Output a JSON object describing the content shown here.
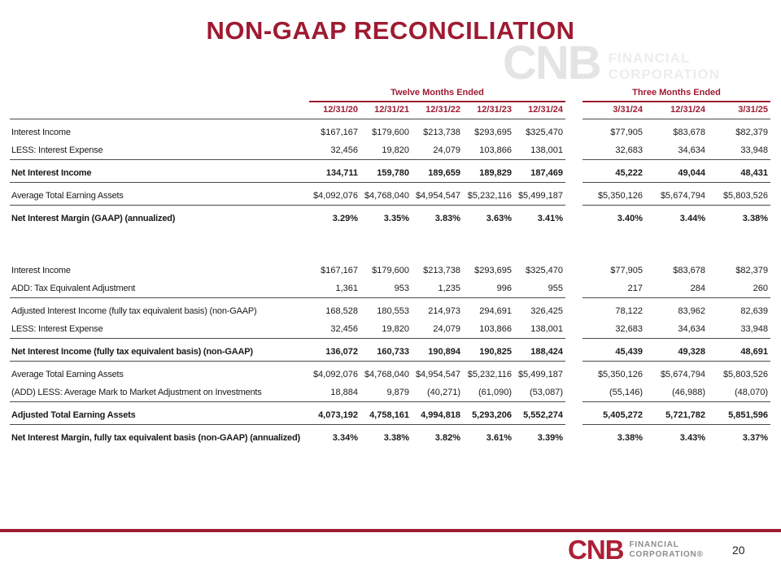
{
  "slide": {
    "title": "NON-GAAP RECONCILIATION",
    "page_number": "20",
    "accent_color": "#9e1b32"
  },
  "watermark": {
    "brand": "CNB",
    "line1": "FINANCIAL",
    "line2": "CORPORATION"
  },
  "footer_logo": {
    "brand": "CNB",
    "line1": "FINANCIAL",
    "line2": "CORPORATION®"
  },
  "table": {
    "groups": [
      {
        "label": "Twelve Months Ended",
        "columns": [
          "12/31/20",
          "12/31/21",
          "12/31/22",
          "12/31/23",
          "12/31/24"
        ]
      },
      {
        "label": "Three Months Ended",
        "columns": [
          "3/31/24",
          "12/31/24",
          "3/31/25"
        ]
      }
    ],
    "rows": [
      {
        "label": "Interest Income",
        "tme": [
          "$167,167",
          "$179,600",
          "$213,738",
          "$293,695",
          "$325,470"
        ],
        "qtr": [
          "$77,905",
          "$83,678",
          "$82,379"
        ],
        "bold": false,
        "rule": false
      },
      {
        "label": "LESS: Interest Expense",
        "tme": [
          "32,456",
          "19,820",
          "24,079",
          "103,866",
          "138,001"
        ],
        "qtr": [
          "32,683",
          "34,634",
          "33,948"
        ],
        "bold": false,
        "rule": true
      },
      {
        "label": "Net Interest Income",
        "tme": [
          "134,711",
          "159,780",
          "189,659",
          "189,829",
          "187,469"
        ],
        "qtr": [
          "45,222",
          "49,044",
          "48,431"
        ],
        "bold": true,
        "rule": true
      },
      {
        "label": "Average Total Earning Assets",
        "tme": [
          "$4,092,076",
          "$4,768,040",
          "$4,954,547",
          "$5,232,116",
          "$5,499,187"
        ],
        "qtr": [
          "$5,350,126",
          "$5,674,794",
          "$5,803,526"
        ],
        "bold": false,
        "rule": true
      },
      {
        "label": "Net Interest Margin (GAAP) (annualized)",
        "tme": [
          "3.29%",
          "3.35%",
          "3.83%",
          "3.63%",
          "3.41%"
        ],
        "qtr": [
          "3.40%",
          "3.44%",
          "3.38%"
        ],
        "bold": true,
        "rule": false
      },
      {
        "spacer": true
      },
      {
        "label": "Interest Income",
        "tme": [
          "$167,167",
          "$179,600",
          "$213,738",
          "$293,695",
          "$325,470"
        ],
        "qtr": [
          "$77,905",
          "$83,678",
          "$82,379"
        ],
        "bold": false,
        "rule": false
      },
      {
        "label": "ADD: Tax Equivalent Adjustment",
        "tme": [
          "1,361",
          "953",
          "1,235",
          "996",
          "955"
        ],
        "qtr": [
          "217",
          "284",
          "260"
        ],
        "bold": false,
        "rule": true
      },
      {
        "label": "Adjusted Interest Income (fully tax equivalent basis) (non-GAAP)",
        "tme": [
          "168,528",
          "180,553",
          "214,973",
          "294,691",
          "326,425"
        ],
        "qtr": [
          "78,122",
          "83,962",
          "82,639"
        ],
        "bold": false,
        "rule": false
      },
      {
        "label": "LESS: Interest Expense",
        "tme": [
          "32,456",
          "19,820",
          "24,079",
          "103,866",
          "138,001"
        ],
        "qtr": [
          "32,683",
          "34,634",
          "33,948"
        ],
        "bold": false,
        "rule": true
      },
      {
        "label": "Net Interest Income (fully tax equivalent basis) (non-GAAP)",
        "tme": [
          "136,072",
          "160,733",
          "190,894",
          "190,825",
          "188,424"
        ],
        "qtr": [
          "45,439",
          "49,328",
          "48,691"
        ],
        "bold": true,
        "rule": true
      },
      {
        "label": "Average Total Earning Assets",
        "tme": [
          "$4,092,076",
          "$4,768,040",
          "$4,954,547",
          "$5,232,116",
          "$5,499,187"
        ],
        "qtr": [
          "$5,350,126",
          "$5,674,794",
          "$5,803,526"
        ],
        "bold": false,
        "rule": false
      },
      {
        "label": "(ADD) LESS: Average Mark to Market Adjustment on Investments",
        "tme": [
          "18,884",
          "9,879",
          "(40,271)",
          "(61,090)",
          "(53,087)"
        ],
        "qtr": [
          "(55,146)",
          "(46,988)",
          "(48,070)"
        ],
        "bold": false,
        "rule": true
      },
      {
        "label": "Adjusted Total Earning Assets",
        "tme": [
          "4,073,192",
          "4,758,161",
          "4,994,818",
          "5,293,206",
          "5,552,274"
        ],
        "qtr": [
          "5,405,272",
          "5,721,782",
          "5,851,596"
        ],
        "bold": true,
        "rule": true
      },
      {
        "label": "Net Interest Margin, fully tax equivalent basis (non-GAAP) (annualized)",
        "tme": [
          "3.34%",
          "3.38%",
          "3.82%",
          "3.61%",
          "3.39%"
        ],
        "qtr": [
          "3.38%",
          "3.43%",
          "3.37%"
        ],
        "bold": true,
        "rule": false
      }
    ]
  }
}
